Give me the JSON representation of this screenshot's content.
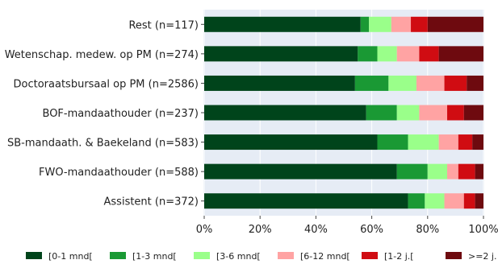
{
  "chart_data": {
    "type": "bar",
    "orientation": "horizontal",
    "stacked": true,
    "categories": [
      "Rest (n=117)",
      "Wetenschap. medew. op PM (n=274)",
      "Doctoraatsbursaal op PM (n=2586)",
      "BOF-mandaathouder (n=237)",
      "SB-mandaath. & Baekeland (n=583)",
      "FWO-mandaathouder (n=588)",
      "Assistent (n=372)"
    ],
    "series": [
      {
        "name": "[0-1 mnd[",
        "color": "#00441b",
        "values": [
          56,
          55,
          54,
          58,
          62,
          69,
          73
        ]
      },
      {
        "name": "[1-3 mnd[",
        "color": "#1a9934",
        "values": [
          3,
          7,
          12,
          11,
          11,
          11,
          6
        ]
      },
      {
        "name": "[3-6 mnd[",
        "color": "#9aff8a",
        "values": [
          8,
          7,
          10,
          8,
          11,
          7,
          7
        ]
      },
      {
        "name": "[6-12 mnd[",
        "color": "#ffa3a3",
        "values": [
          7,
          8,
          10,
          10,
          7,
          4,
          7
        ]
      },
      {
        "name": "[1-2 j.[",
        "color": "#d00c12",
        "values": [
          6,
          7,
          8,
          6,
          5,
          6,
          4
        ]
      },
      {
        "name": ">=2 j.",
        "color": "#6e0a0f",
        "values": [
          20,
          16,
          6,
          7,
          4,
          3,
          3
        ]
      }
    ],
    "x_ticks": [
      "0%",
      "20%",
      "40%",
      "60%",
      "80%",
      "100%"
    ],
    "xlim": [
      0,
      100
    ],
    "grid": true,
    "legend_position": "bottom",
    "plot_background": "#e6ecf5"
  }
}
